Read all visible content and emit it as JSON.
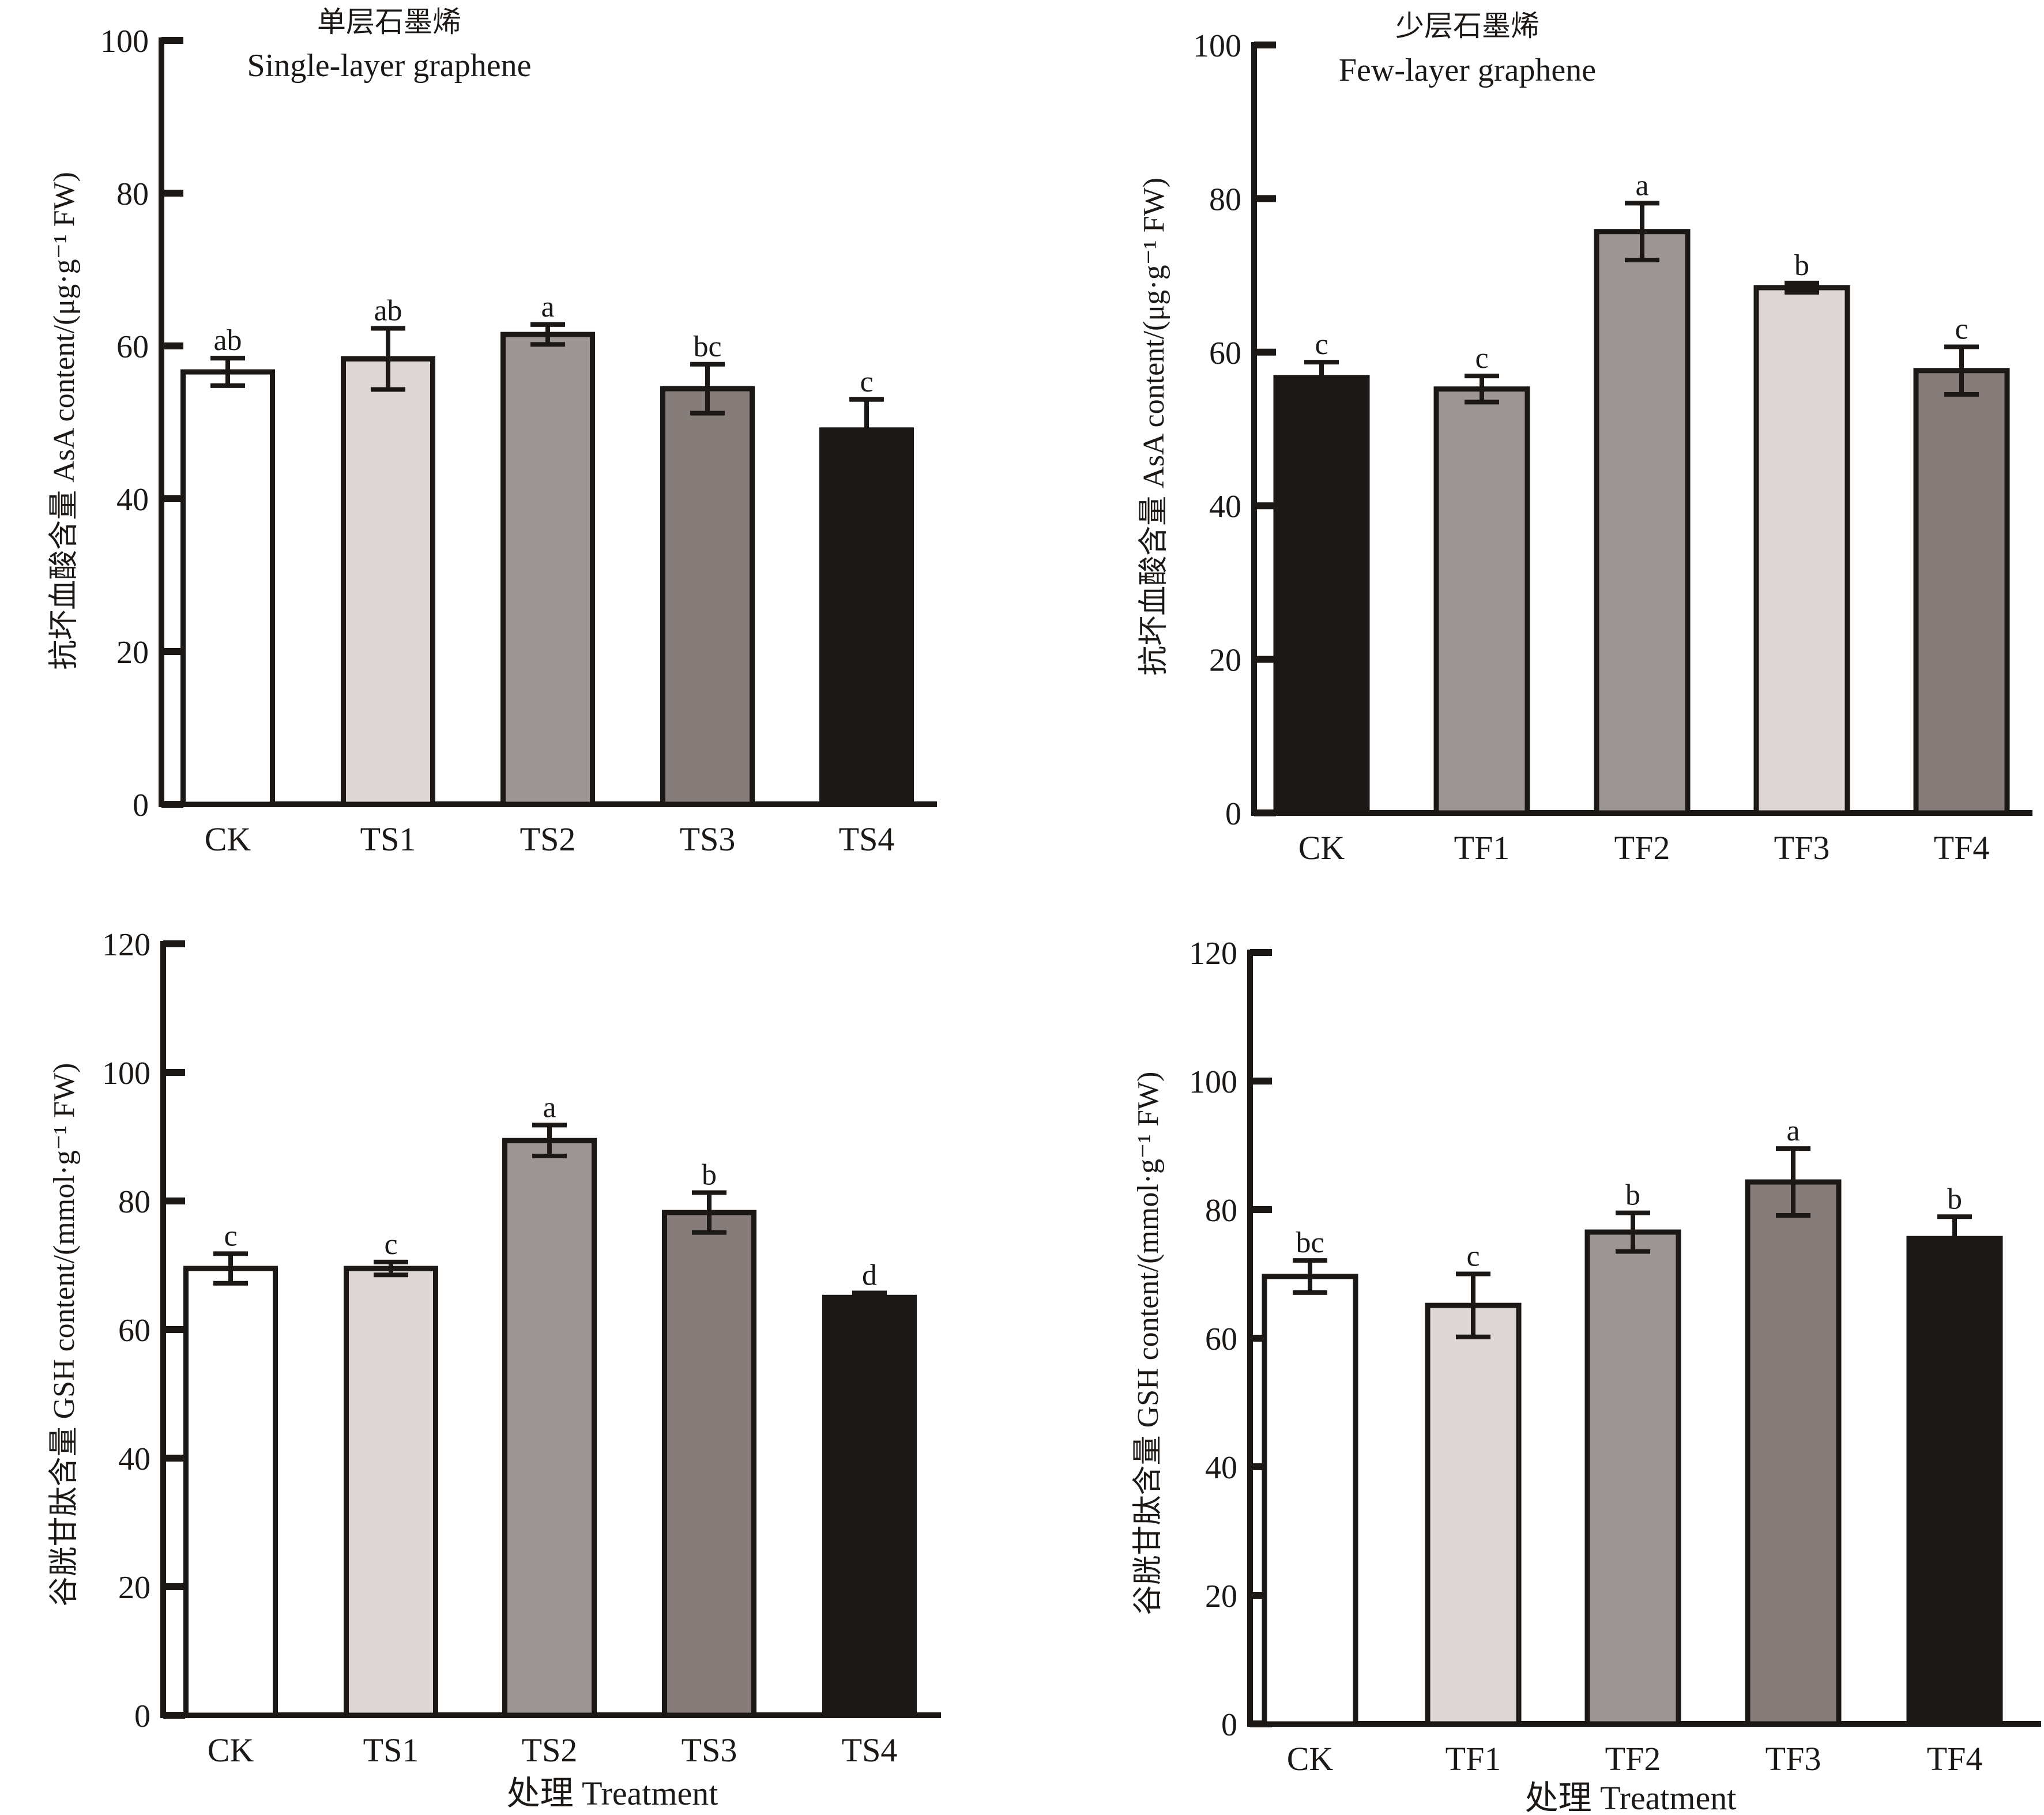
{
  "figure": {
    "x_axis_title": "处理 Treatment"
  },
  "chart_data": [
    {
      "id": "asa-single",
      "type": "bar",
      "title_cn": "单层石墨烯",
      "title_en": "Single-layer graphene",
      "ylabel": "抗坏血酸含量 AsA content/(μg·g⁻¹ FW)",
      "xlabel": "",
      "ylim": [
        0,
        100
      ],
      "yticks": [
        0,
        20,
        40,
        60,
        80,
        100
      ],
      "categories": [
        "CK",
        "TS1",
        "TS2",
        "TS3",
        "TS4"
      ],
      "values": [
        56.6,
        58.3,
        61.5,
        54.4,
        49.0
      ],
      "errors": [
        1.8,
        4.0,
        1.3,
        3.2,
        4.0
      ],
      "significance": [
        "ab",
        "ab",
        "a",
        "bc",
        "c"
      ],
      "colors": [
        "#ffffff",
        "#ded7d5",
        "#9d9594",
        "#867d7b",
        "#1c1815"
      ],
      "grid": false
    },
    {
      "id": "asa-few",
      "type": "bar",
      "title_cn": "少层石墨烯",
      "title_en": "Few-layer graphene",
      "ylabel": "抗坏血酸含量 AsA content/(μg·g⁻¹ FW)",
      "xlabel": "",
      "ylim": [
        0,
        100
      ],
      "yticks": [
        0,
        20,
        40,
        60,
        80,
        100
      ],
      "categories": [
        "CK",
        "TF1",
        "TF2",
        "TF3",
        "TF4"
      ],
      "values": [
        56.7,
        55.2,
        75.7,
        68.4,
        57.6
      ],
      "errors": [
        2.0,
        1.7,
        3.7,
        0.6,
        3.1
      ],
      "significance": [
        "c",
        "c",
        "a",
        "b",
        "c"
      ],
      "colors": [
        "#1c1815",
        "#9d9594",
        "#9d9594",
        "#ded7d5",
        "#867d7b"
      ],
      "grid": false
    },
    {
      "id": "gsh-single",
      "type": "bar",
      "title_cn": "",
      "title_en": "",
      "ylabel": "谷胱甘肽含量 GSH content/(mmol·g⁻¹ FW)",
      "xlabel": "处理 Treatment",
      "ylim": [
        0,
        120
      ],
      "yticks": [
        0,
        20,
        40,
        60,
        80,
        100,
        120
      ],
      "categories": [
        "CK",
        "TS1",
        "TS2",
        "TS3",
        "TS4"
      ],
      "values": [
        69.5,
        69.5,
        89.4,
        78.2,
        65.0
      ],
      "errors": [
        2.3,
        1.0,
        2.4,
        3.1,
        0.7
      ],
      "significance": [
        "c",
        "c",
        "a",
        "b",
        "d"
      ],
      "colors": [
        "#ffffff",
        "#ded7d5",
        "#9d9594",
        "#867d7b",
        "#1c1815"
      ],
      "grid": false
    },
    {
      "id": "gsh-few",
      "type": "bar",
      "title_cn": "",
      "title_en": "",
      "ylabel": "谷胱甘肽含量 GSH content/(mmol·g⁻¹ FW)",
      "xlabel": "处理 Treatment",
      "ylim": [
        0,
        120
      ],
      "yticks": [
        0,
        20,
        40,
        60,
        80,
        100,
        120
      ],
      "categories": [
        "CK",
        "TF1",
        "TF2",
        "TF3",
        "TF4"
      ],
      "values": [
        69.6,
        65.1,
        76.5,
        84.3,
        75.5
      ],
      "errors": [
        2.5,
        4.9,
        3.0,
        5.2,
        3.4
      ],
      "significance": [
        "bc",
        "c",
        "b",
        "a",
        "b"
      ],
      "colors": [
        "#ffffff",
        "#ded7d5",
        "#9d9594",
        "#867d7b",
        "#1c1815"
      ],
      "grid": false
    }
  ]
}
